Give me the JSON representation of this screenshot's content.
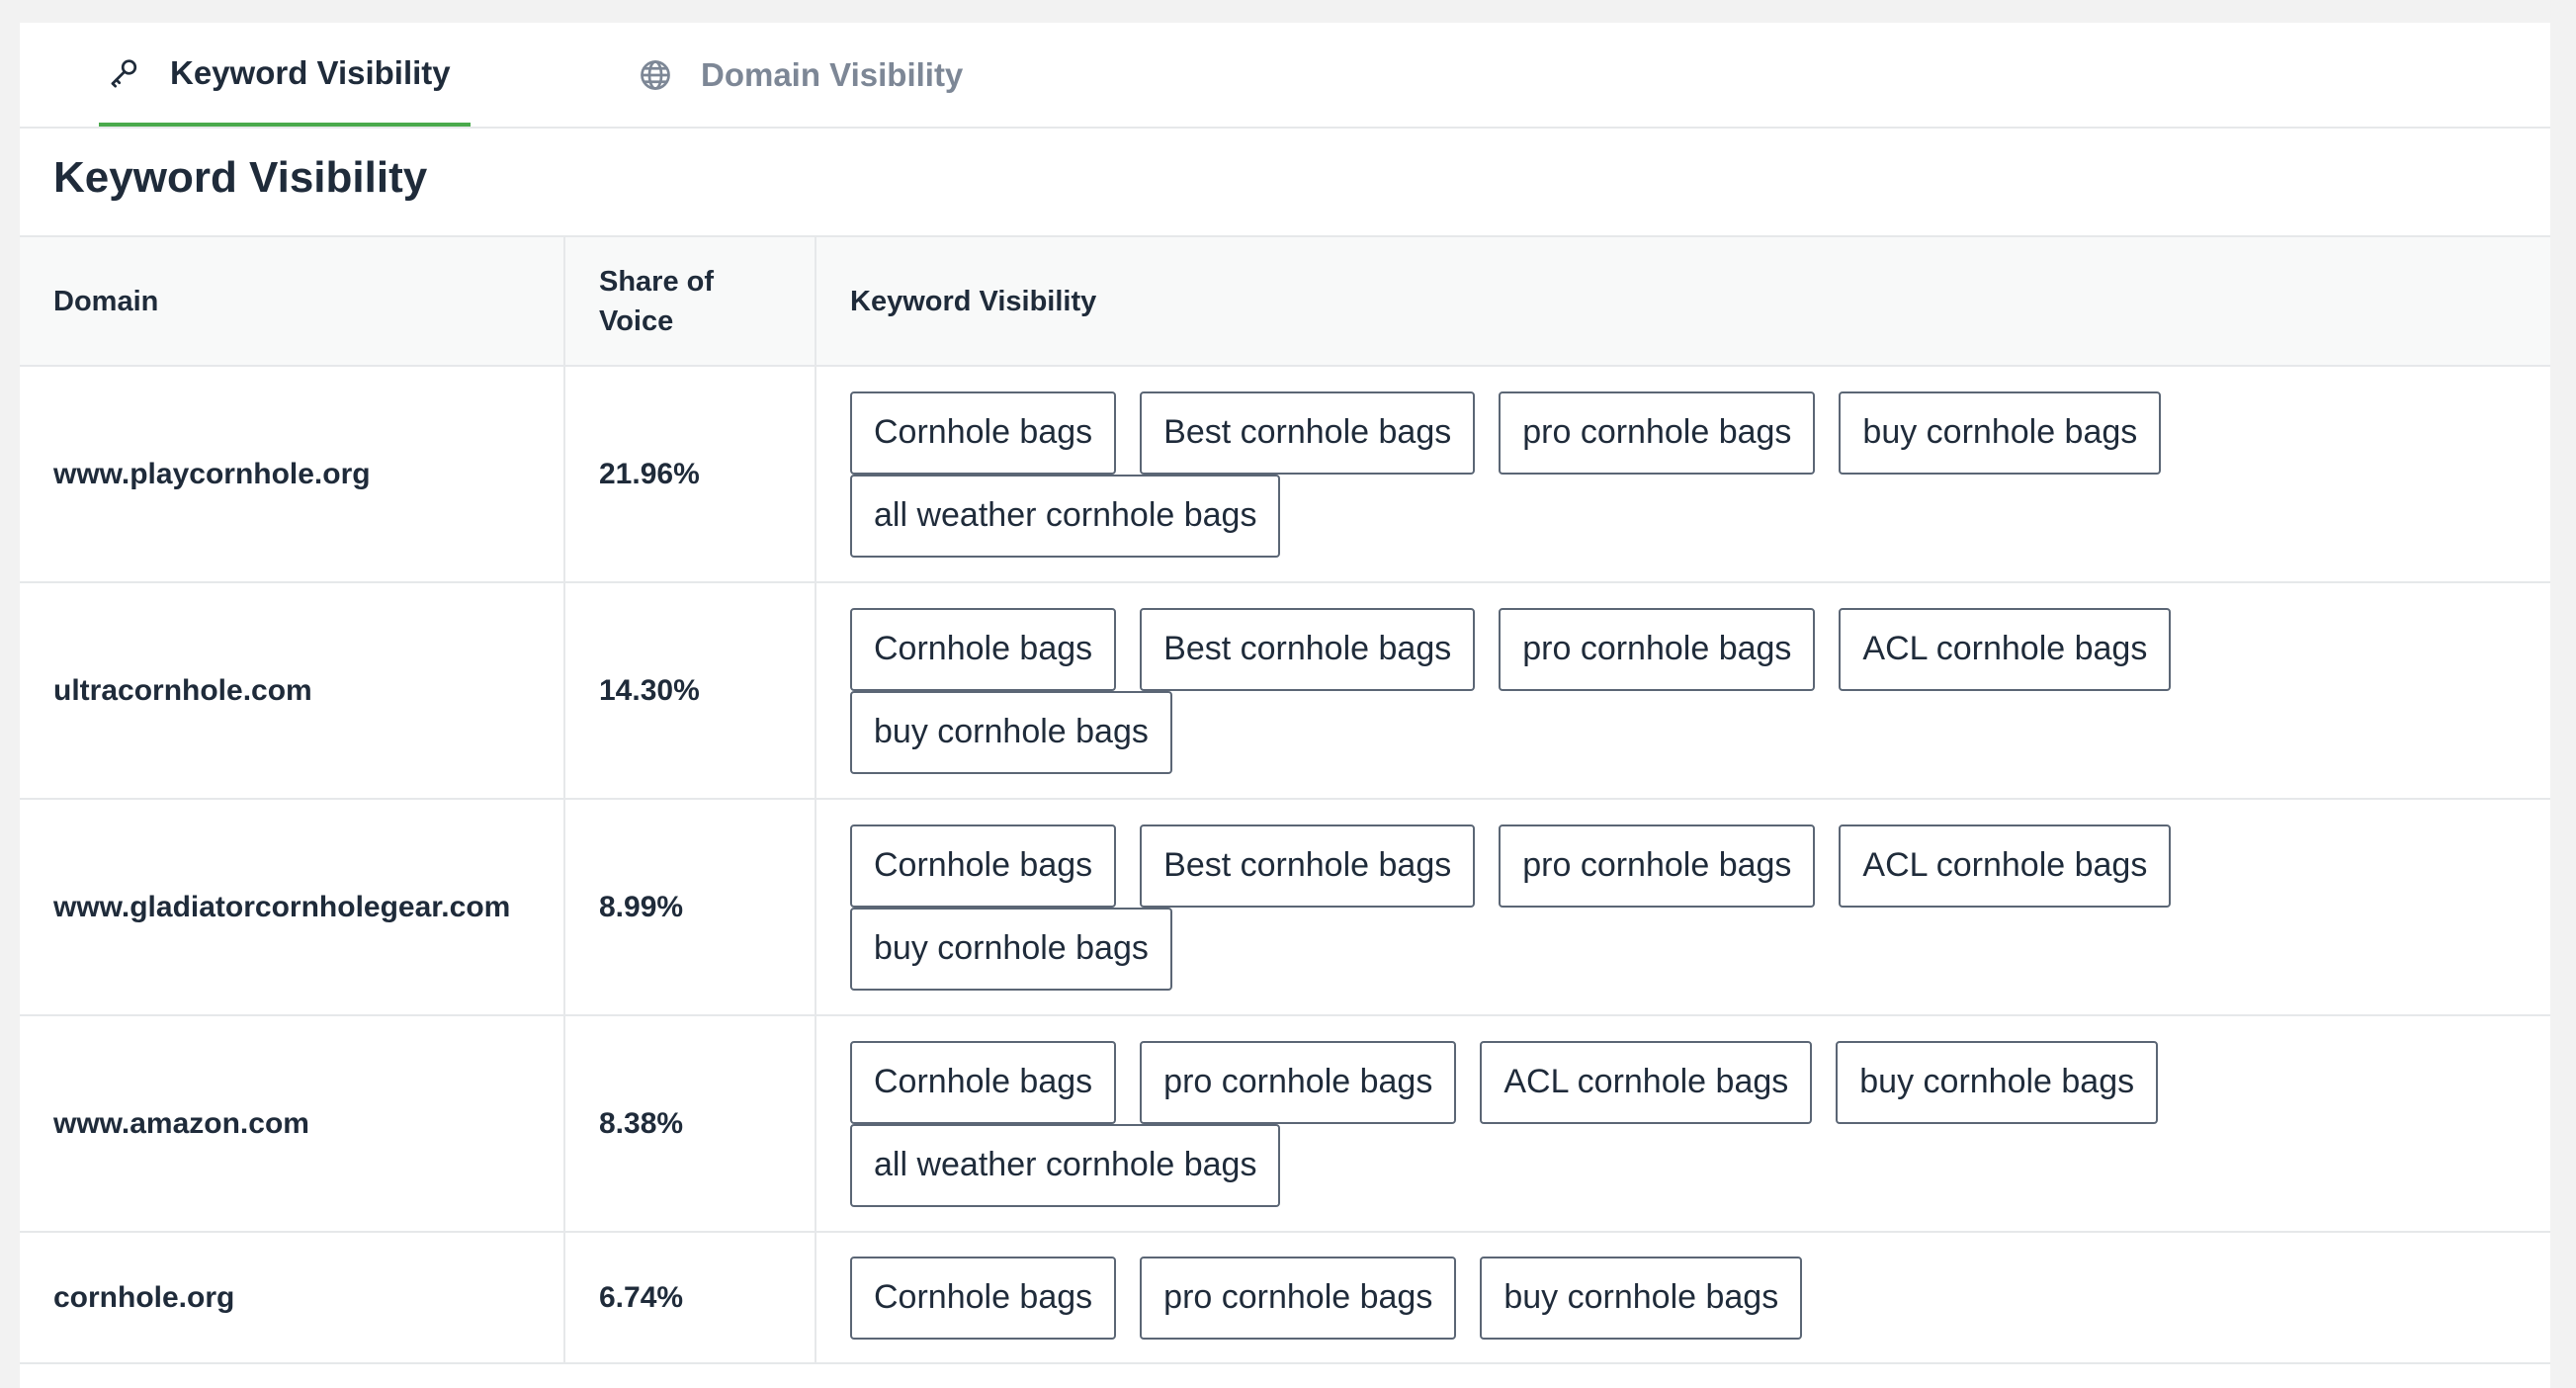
{
  "tabs": [
    {
      "label": "Keyword Visibility",
      "icon": "key-icon",
      "active": true
    },
    {
      "label": "Domain Visibility",
      "icon": "globe-icon",
      "active": false
    }
  ],
  "section_title": "Keyword Visibility",
  "table": {
    "headers": {
      "domain": "Domain",
      "share": "Share of Voice",
      "keywords": "Keyword Visibility"
    },
    "rows": [
      {
        "domain": "www.playcornhole.org",
        "share": "21.96%",
        "keywords": [
          "Cornhole bags",
          "Best cornhole bags",
          "pro cornhole bags",
          "buy cornhole bags",
          "all weather cornhole bags"
        ]
      },
      {
        "domain": "ultracornhole.com",
        "share": "14.30%",
        "keywords": [
          "Cornhole bags",
          "Best cornhole bags",
          "pro cornhole bags",
          "ACL cornhole bags",
          "buy cornhole bags"
        ]
      },
      {
        "domain": "www.gladiatorcornholegear.com",
        "share": "8.99%",
        "keywords": [
          "Cornhole bags",
          "Best cornhole bags",
          "pro cornhole bags",
          "ACL cornhole bags",
          "buy cornhole bags"
        ]
      },
      {
        "domain": "www.amazon.com",
        "share": "8.38%",
        "keywords": [
          "Cornhole bags",
          "pro cornhole bags",
          "ACL cornhole bags",
          "buy cornhole bags",
          "all weather cornhole bags"
        ]
      },
      {
        "domain": "cornhole.org",
        "share": "6.74%",
        "keywords": [
          "Cornhole bags",
          "pro cornhole bags",
          "buy cornhole bags"
        ]
      }
    ]
  },
  "colors": {
    "accent": "#4aaa4c",
    "text": "#1f2b3a",
    "muted": "#7d8796",
    "border": "#e6e8ea"
  }
}
